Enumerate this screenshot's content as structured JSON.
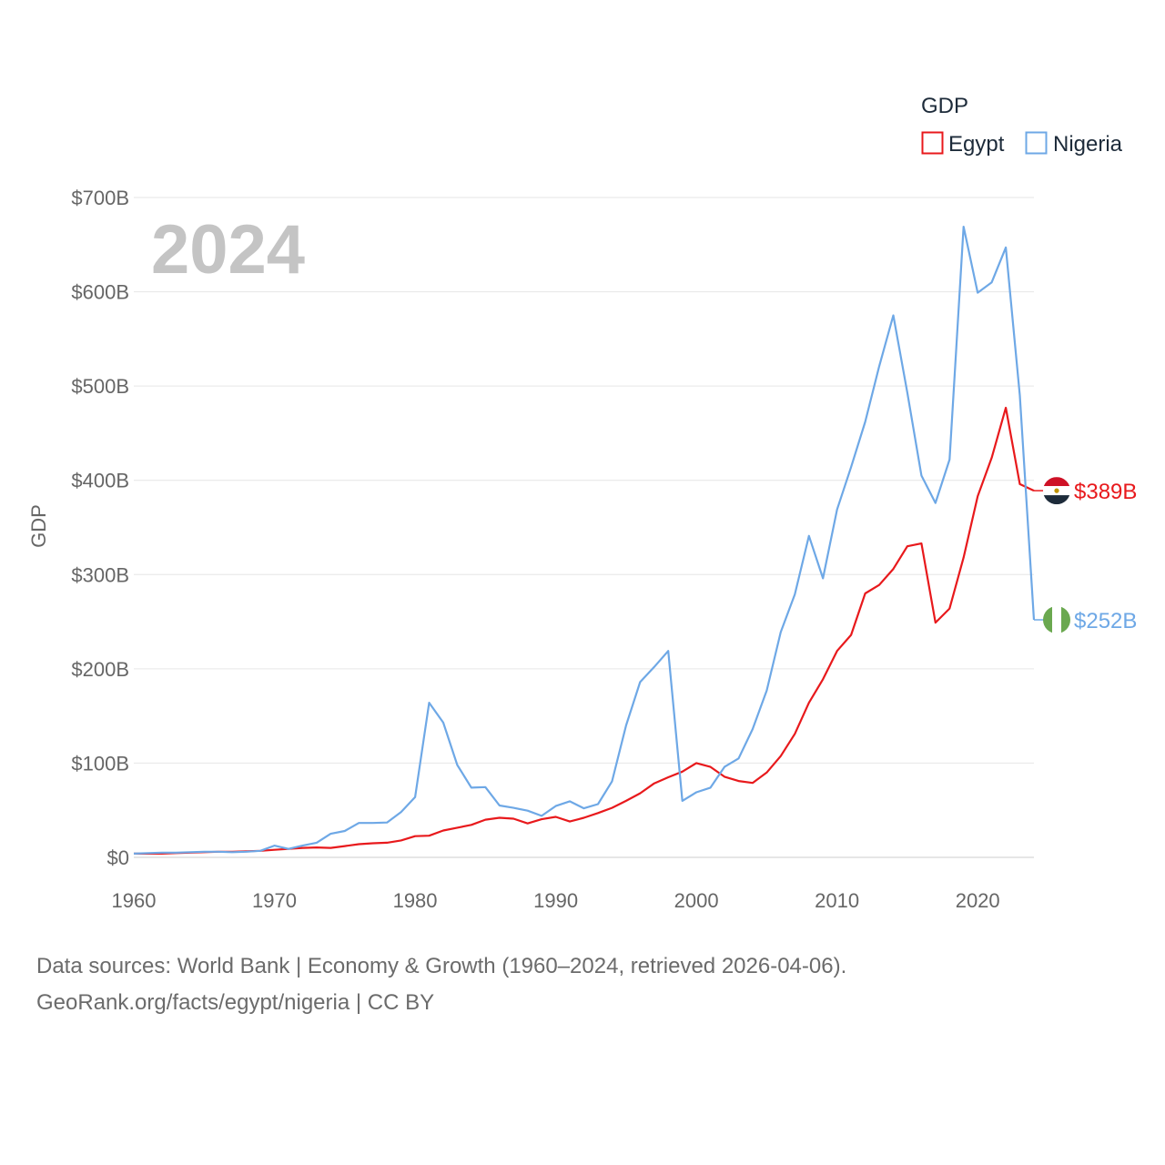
{
  "chart_data": {
    "type": "line",
    "title": "",
    "year_label": "2024",
    "ylabel": "GDP",
    "xlabel": "",
    "legend_title": "GDP",
    "legend_position": "top-right",
    "grid": true,
    "xlim": [
      1960,
      2024
    ],
    "ylim": [
      0,
      700
    ],
    "x_ticks": [
      1960,
      1970,
      1980,
      1990,
      2000,
      2010,
      2020
    ],
    "x_tick_labels": [
      "1960",
      "1970",
      "1980",
      "1990",
      "2000",
      "2010",
      "2020"
    ],
    "y_ticks": [
      0,
      100,
      200,
      300,
      400,
      500,
      600,
      700
    ],
    "y_tick_labels": [
      "$0",
      "$100B",
      "$200B",
      "$300B",
      "$400B",
      "$500B",
      "$600B",
      "$700B"
    ],
    "units": "billion current US$",
    "x": [
      1960,
      1961,
      1962,
      1963,
      1964,
      1965,
      1966,
      1967,
      1968,
      1969,
      1970,
      1971,
      1972,
      1973,
      1974,
      1975,
      1976,
      1977,
      1978,
      1979,
      1980,
      1981,
      1982,
      1983,
      1984,
      1985,
      1986,
      1987,
      1988,
      1989,
      1990,
      1991,
      1992,
      1993,
      1994,
      1995,
      1996,
      1997,
      1998,
      1999,
      2000,
      2001,
      2002,
      2003,
      2004,
      2005,
      2006,
      2007,
      2008,
      2009,
      2010,
      2011,
      2012,
      2013,
      2014,
      2015,
      2016,
      2017,
      2018,
      2019,
      2020,
      2021,
      2022,
      2023,
      2024
    ],
    "series": [
      {
        "name": "Egypt",
        "color": "#e8191c",
        "end_label": "$389B",
        "flag_icon": "egypt-flag-icon",
        "values": [
          4,
          4,
          4,
          4.5,
          5,
          5.5,
          6,
          6,
          6.5,
          7,
          8,
          9,
          10,
          10.5,
          10,
          12,
          14,
          15,
          15.5,
          18,
          22.5,
          23,
          28.5,
          31.5,
          34.5,
          40,
          42,
          41,
          36,
          40.5,
          43,
          38,
          42,
          47,
          52.5,
          60,
          68,
          78.5,
          85,
          91,
          100,
          96,
          85.5,
          81,
          79,
          90,
          107.5,
          131,
          164,
          189,
          219,
          236,
          280,
          289,
          306,
          330,
          333,
          249,
          264,
          318,
          383,
          424,
          477,
          396,
          389
        ]
      },
      {
        "name": "Nigeria",
        "color": "#6ea8e6",
        "end_label": "$252B",
        "flag_icon": "nigeria-flag-icon",
        "values": [
          4,
          4.5,
          5,
          5,
          5.5,
          6,
          6,
          5.5,
          6,
          7,
          12.5,
          9,
          12.5,
          15.5,
          25,
          28,
          36.5,
          36.5,
          37,
          48,
          64,
          164,
          143,
          98,
          74,
          74.5,
          55,
          52.5,
          49.5,
          44,
          54.5,
          59.5,
          52,
          56.5,
          80.5,
          140,
          186,
          202,
          219,
          60,
          69,
          74,
          96,
          105,
          136,
          177,
          239,
          279,
          341,
          296,
          369,
          414,
          462,
          521,
          575,
          493,
          405,
          376,
          422,
          669,
          599,
          610,
          647,
          490,
          252
        ]
      }
    ]
  },
  "footer": {
    "sources": "Data sources: World Bank | Economy & Growth (1960–2024, retrieved 2026-04-06).",
    "site": "GeoRank.org/facts/egypt/nigeria | CC BY"
  }
}
